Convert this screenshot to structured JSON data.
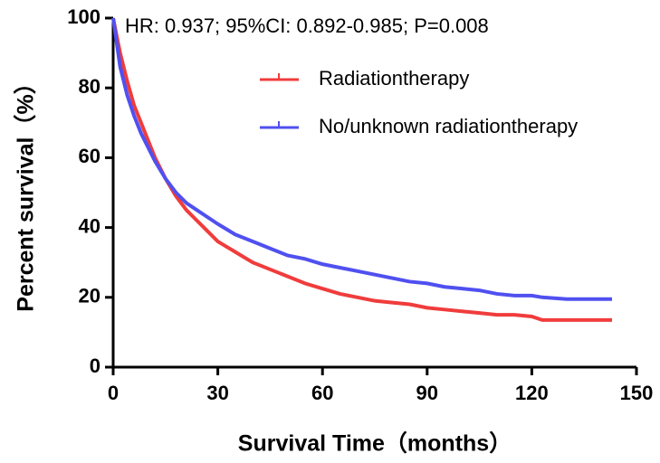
{
  "chart_data": {
    "type": "line",
    "annotation": "HR: 0.937; 95%CI: 0.892-0.985; P=0.008",
    "x_label": "Survival Time（months）",
    "y_label": "Percent survival（%）",
    "x": [
      0,
      2,
      4,
      6,
      8,
      10,
      12,
      15,
      18,
      21,
      24,
      27,
      30,
      35,
      40,
      45,
      50,
      55,
      60,
      65,
      70,
      75,
      80,
      85,
      90,
      95,
      100,
      105,
      110,
      115,
      120,
      123,
      130,
      143
    ],
    "series": [
      {
        "name": "Radiationtherapy",
        "color": "#f03c3c",
        "values": [
          100,
          90,
          82,
          75,
          70,
          65,
          60,
          54,
          49,
          45,
          42,
          39,
          36,
          33,
          30,
          28,
          26,
          24,
          22.5,
          21,
          20,
          19,
          18.5,
          18,
          17,
          16.5,
          16,
          15.5,
          15,
          15,
          14.5,
          13.5,
          13.5,
          13.5
        ]
      },
      {
        "name": "No/unknown radiationtherapy",
        "color": "#5050f0",
        "values": [
          100,
          86,
          78,
          72,
          67,
          63,
          59,
          54,
          50,
          47,
          45,
          43,
          41,
          38,
          36,
          34,
          32,
          31,
          29.5,
          28.5,
          27.5,
          26.5,
          25.5,
          24.5,
          24,
          23,
          22.5,
          22,
          21,
          20.5,
          20.5,
          20,
          19.5,
          19.5
        ]
      }
    ],
    "xlim": [
      0,
      150
    ],
    "xticks": [
      0,
      30,
      60,
      90,
      120,
      150
    ],
    "ylim": [
      0,
      100
    ],
    "yticks": [
      0,
      20,
      40,
      60,
      80,
      100
    ]
  }
}
